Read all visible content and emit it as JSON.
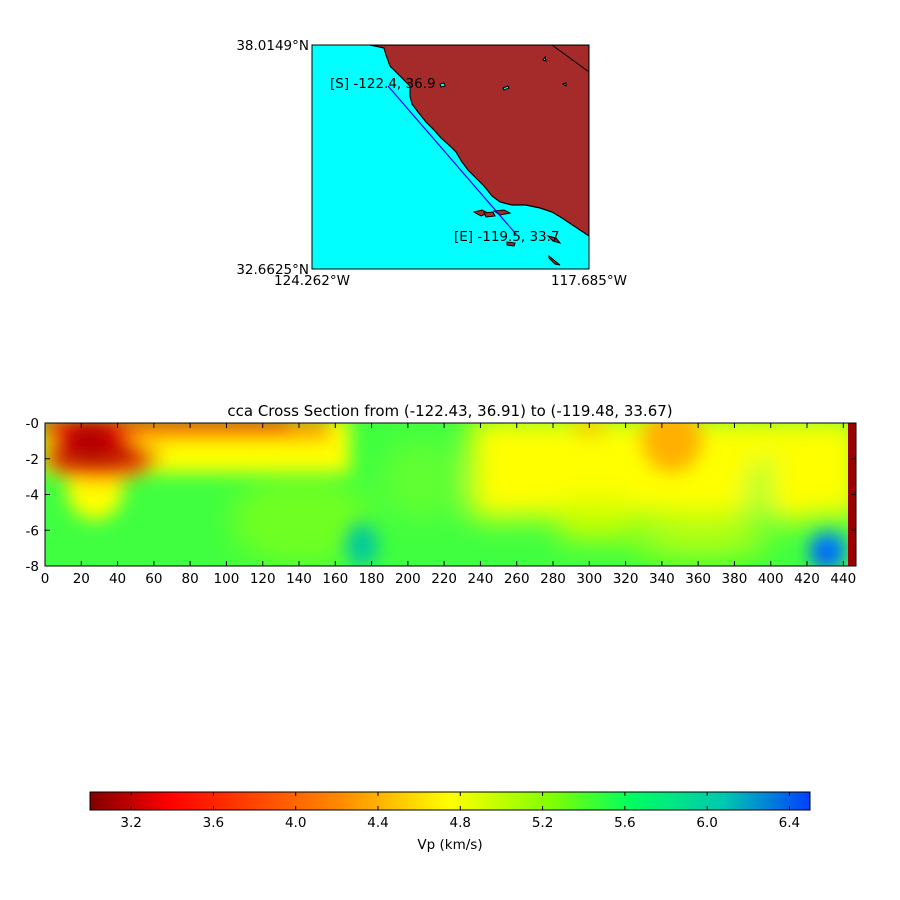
{
  "colors": {
    "ocean": "#00ffff",
    "land": "#a52a2a",
    "track": "#0000ff",
    "outline": "#000000"
  },
  "map": {
    "lat_top_label": "38.0149°N",
    "lat_bottom_label": "32.6625°N",
    "lon_left_label": "124.262°W",
    "lon_right_label": "117.685°W",
    "start_label": "[S] -122.4, 36.9",
    "end_label": "[E] -119.5, 33.7",
    "lon_range": [
      -124.262,
      -117.685
    ],
    "lat_range": [
      32.6625,
      38.0149
    ]
  },
  "chart_data": [
    {
      "type": "heatmap",
      "title": "cca Cross Section from (-122.43, 36.91) to (-119.48, 33.67)",
      "xlabel": "",
      "ylabel": "",
      "xlim": [
        0,
        447
      ],
      "ylim": [
        -8,
        0
      ],
      "x_ticks": [
        "0",
        "20",
        "40",
        "60",
        "80",
        "100",
        "120",
        "140",
        "160",
        "180",
        "200",
        "220",
        "240",
        "260",
        "280",
        "300",
        "320",
        "340",
        "360",
        "380",
        "400",
        "420",
        "440"
      ],
      "y_ticks": [
        "-0",
        "-2",
        "-4",
        "-6",
        "-8"
      ],
      "y_tick_values": [
        0,
        -2,
        -4,
        -6,
        -8
      ],
      "x_tick_values": [
        0,
        20,
        40,
        60,
        80,
        100,
        120,
        140,
        160,
        180,
        200,
        220,
        240,
        260,
        280,
        300,
        320,
        340,
        360,
        380,
        400,
        420,
        440
      ],
      "values_note_samples": [
        {
          "x": 30,
          "depth": 2,
          "vp": 3.1
        },
        {
          "x": 30,
          "depth": 0.3,
          "vp": 3.4
        },
        {
          "x": 90,
          "depth": 0.5,
          "vp": 4.0
        },
        {
          "x": 120,
          "depth": 2.5,
          "vp": 4.9
        },
        {
          "x": 30,
          "depth": 4,
          "vp": 4.6
        },
        {
          "x": 30,
          "depth": 6.5,
          "vp": 5.6
        },
        {
          "x": 175,
          "depth": 6.5,
          "vp": 6.1
        },
        {
          "x": 200,
          "depth": 3,
          "vp": 5.5
        },
        {
          "x": 300,
          "depth": 0.4,
          "vp": 4.6
        },
        {
          "x": 350,
          "depth": 1.5,
          "vp": 4.4
        },
        {
          "x": 400,
          "depth": 4,
          "vp": 4.9
        },
        {
          "x": 430,
          "depth": 7.3,
          "vp": 6.4
        }
      ]
    },
    {
      "type": "colorbar",
      "label": "Vp (km/s)",
      "range": [
        3.0,
        6.5
      ],
      "ticks": [
        "3.2",
        "3.6",
        "4.0",
        "4.4",
        "4.8",
        "5.2",
        "5.6",
        "6.0",
        "6.4"
      ],
      "tick_values": [
        3.2,
        3.6,
        4.0,
        4.4,
        4.8,
        5.2,
        5.6,
        6.0,
        6.4
      ],
      "colormap": "jet_r"
    }
  ]
}
